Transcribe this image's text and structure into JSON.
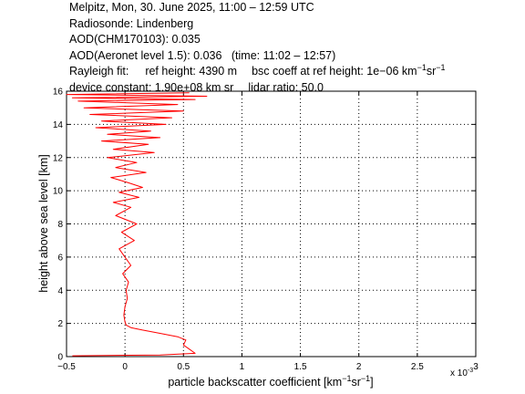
{
  "header": {
    "line1": "Melpitz, Mon, 30. June 2025, 11:00 – 12:59 UTC",
    "line2": "Radiosonde: Lindenberg",
    "line3": "AOD(CHM170103): 0.035",
    "line4": "AOD(Aeronet level 1.5): 0.036   (time: 11:02 – 12:57)",
    "rayleigh_label": "Rayleigh fit:",
    "ref_height": "ref height: 4390 m",
    "bsc_coeff_prefix": "bsc coeff at ref height: 1e−06 km",
    "bsc_coeff_exp1": "−1",
    "bsc_coeff_mid": "sr",
    "bsc_coeff_exp2": "−1",
    "device_constant": "device constant: 1.90e+08 km sr",
    "lidar_ratio": "lidar ratio: 50.0"
  },
  "chart_data": {
    "type": "line",
    "xlabel_prefix": "particle backscatter coefficient [km",
    "xlabel_exp1": "−1",
    "xlabel_mid": "sr",
    "xlabel_exp2": "−1",
    "xlabel_suffix": "]",
    "ylabel": "height above sea level [km]",
    "x_multiplier_label": "x 10",
    "x_multiplier_exp": "-3",
    "xlim": [
      -0.5,
      3
    ],
    "ylim": [
      0,
      16
    ],
    "xticks": [
      -0.5,
      0,
      0.5,
      1,
      1.5,
      2,
      2.5,
      3
    ],
    "xtick_labels": [
      "−0.5",
      "0",
      "0.5",
      "1",
      "1.5",
      "2",
      "2.5",
      "3"
    ],
    "yticks": [
      0,
      2,
      4,
      6,
      8,
      10,
      12,
      14,
      16
    ],
    "ytick_labels": [
      "0",
      "2",
      "4",
      "6",
      "8",
      "10",
      "12",
      "14",
      "16"
    ],
    "grid": true,
    "line_color": "#ff0000",
    "series": [
      {
        "x": [
          -0.45,
          0.3,
          0.6,
          0.55,
          0.5,
          0.52,
          0.45,
          0.3,
          0.15,
          0.05,
          0.01,
          0.0,
          -0.01,
          0.0,
          0.02,
          0.01,
          0.03,
          -0.02,
          0.05,
          0.0,
          -0.05,
          0.08,
          -0.03,
          0.1,
          -0.08,
          0.05,
          -0.1,
          0.12,
          -0.05,
          0.15,
          0.02,
          -0.12,
          0.18,
          -0.08,
          0.1,
          -0.15,
          0.25,
          -0.1,
          0.2,
          -0.2,
          0.3,
          -0.15,
          0.22,
          -0.25,
          0.35,
          -0.2,
          0.4,
          -0.3,
          0.5,
          -0.35,
          0.45,
          -0.4,
          0.6,
          -0.45,
          0.7,
          -0.5,
          0.55
        ],
        "y": [
          0.05,
          0.1,
          0.2,
          0.45,
          0.7,
          1.0,
          1.2,
          1.4,
          1.6,
          1.75,
          1.9,
          2.1,
          2.5,
          3.0,
          3.5,
          4.0,
          4.5,
          5.0,
          5.5,
          6.0,
          6.5,
          7.0,
          7.5,
          8.0,
          8.5,
          9.0,
          9.3,
          9.6,
          9.9,
          10.2,
          10.5,
          10.8,
          11.1,
          11.4,
          11.7,
          12.0,
          12.3,
          12.5,
          12.8,
          13.0,
          13.2,
          13.4,
          13.6,
          13.8,
          14.0,
          14.2,
          14.4,
          14.6,
          14.8,
          15.0,
          15.2,
          15.4,
          15.5,
          15.6,
          15.7,
          15.8,
          15.9
        ]
      }
    ]
  }
}
